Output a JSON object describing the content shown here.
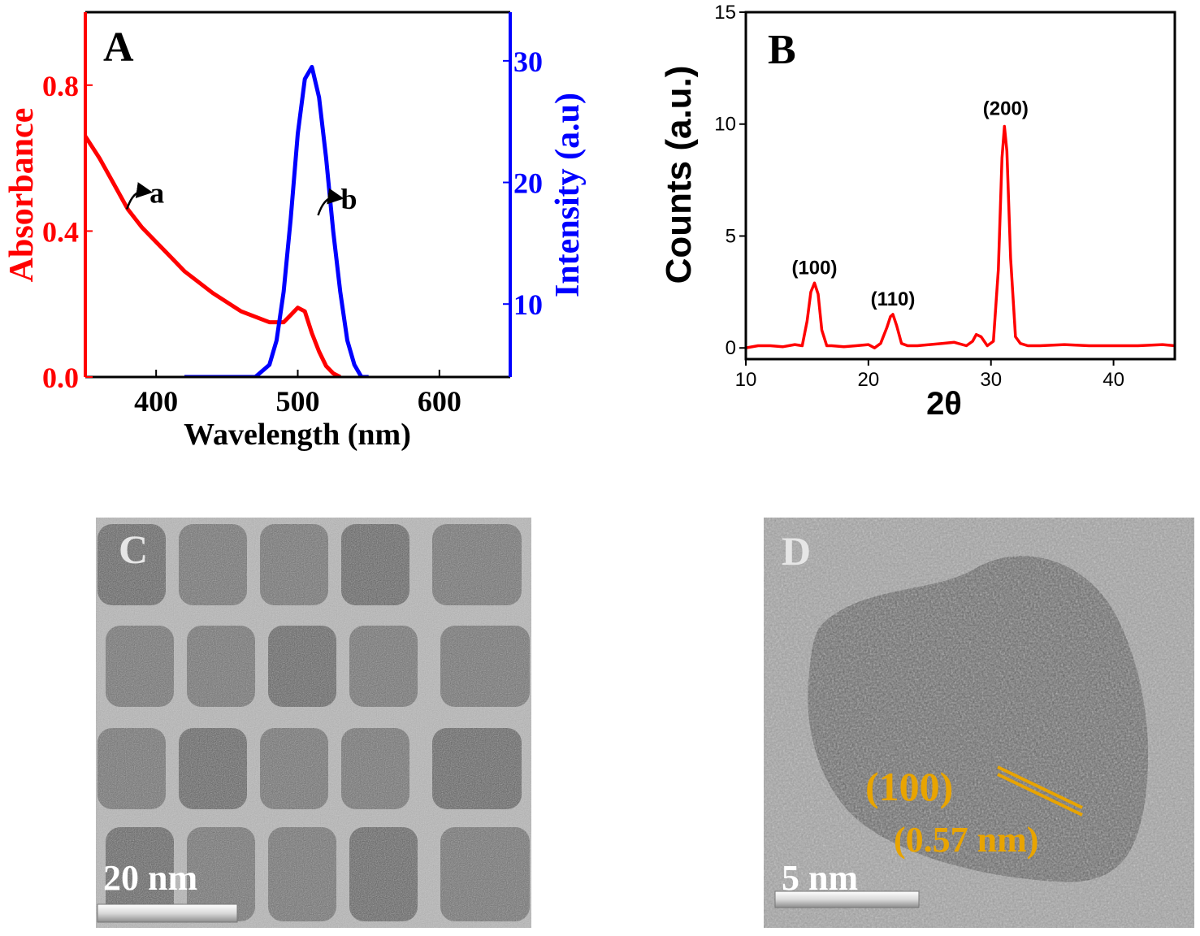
{
  "panels": {
    "A": {
      "label": "A"
    },
    "B": {
      "label": "B"
    },
    "C": {
      "label": "C",
      "scale_bar": "20 nm"
    },
    "D": {
      "label": "D",
      "scale_bar": "5 nm",
      "plane": "(100)",
      "spacing": "(0.57 nm)"
    }
  },
  "colors": {
    "absorbance": "#ff0000",
    "intensity": "#0000ff",
    "xrd": "#ff0000",
    "lattice_annotation": "#e8a400",
    "micrograph_label": "#e6e6e6"
  },
  "chart_data": [
    {
      "panel": "A",
      "type": "line",
      "title": "",
      "xlabel": "Wavelength (nm)",
      "ylabel_left": "Absorbance",
      "ylabel_right": "Intensity (a.u)",
      "xlim": [
        350,
        650
      ],
      "ylim_left": [
        0.0,
        1.0
      ],
      "ylim_right": [
        4,
        34
      ],
      "xticks": [
        400,
        500,
        600
      ],
      "yticks_left": [
        0.0,
        0.4,
        0.8
      ],
      "yticks_left_labels": [
        "0.0",
        "0.4",
        "0.8"
      ],
      "yticks_right": [
        10,
        20,
        30
      ],
      "series": [
        {
          "name": "a",
          "axis": "left",
          "x": [
            350,
            360,
            370,
            380,
            390,
            400,
            410,
            420,
            440,
            460,
            480,
            490,
            495,
            500,
            505,
            510,
            515,
            520,
            525,
            530
          ],
          "y": [
            0.66,
            0.6,
            0.53,
            0.46,
            0.41,
            0.37,
            0.33,
            0.29,
            0.23,
            0.18,
            0.15,
            0.15,
            0.17,
            0.19,
            0.18,
            0.12,
            0.07,
            0.03,
            0.01,
            0.0
          ]
        },
        {
          "name": "b",
          "axis": "right",
          "x": [
            420,
            470,
            480,
            485,
            490,
            495,
            500,
            505,
            510,
            515,
            520,
            525,
            530,
            535,
            540,
            545,
            550
          ],
          "y": [
            4,
            4,
            5,
            7,
            11,
            17,
            24,
            28.5,
            29.5,
            27,
            22,
            16,
            11,
            7,
            5,
            4,
            4
          ]
        }
      ],
      "annotations": [
        {
          "text": "a",
          "x": 400,
          "y": 0.5,
          "axis": "left"
        },
        {
          "text": "b",
          "x": 535,
          "y": 18.5,
          "axis": "right"
        }
      ]
    },
    {
      "panel": "B",
      "type": "line",
      "title": "",
      "xlabel": "2θ",
      "ylabel": "Counts (a.u.)",
      "xlim": [
        10,
        45
      ],
      "ylim": [
        -0.5,
        15
      ],
      "xticks": [
        10,
        20,
        30,
        40
      ],
      "yticks": [
        0,
        5,
        10,
        15
      ],
      "series": [
        {
          "name": "",
          "x": [
            10,
            11,
            12,
            13,
            14,
            14.6,
            15.0,
            15.3,
            15.6,
            15.9,
            16.2,
            16.6,
            17,
            18,
            19,
            20,
            20.5,
            21,
            21.5,
            21.8,
            22.0,
            22.3,
            22.7,
            23.2,
            24,
            25,
            26,
            27,
            28,
            28.5,
            28.8,
            29.2,
            29.7,
            30.2,
            30.6,
            30.9,
            31.1,
            31.3,
            31.6,
            32.0,
            32.4,
            33,
            34,
            36,
            38,
            40,
            42,
            44,
            45
          ],
          "y": [
            0,
            0.1,
            0.1,
            0.05,
            0.15,
            0.1,
            1.2,
            2.5,
            2.9,
            2.4,
            0.8,
            0.1,
            0.1,
            0.05,
            0.1,
            0.15,
            0.0,
            0.2,
            0.9,
            1.4,
            1.5,
            1.0,
            0.2,
            0.1,
            0.1,
            0.15,
            0.2,
            0.25,
            0.1,
            0.3,
            0.6,
            0.5,
            0.1,
            0.3,
            3.5,
            8.5,
            9.9,
            8.8,
            4.0,
            0.5,
            0.2,
            0.1,
            0.1,
            0.15,
            0.1,
            0.1,
            0.1,
            0.15,
            0.1
          ]
        }
      ],
      "annotations": [
        {
          "text": "(100)",
          "x": 15.6,
          "y": 3.3
        },
        {
          "text": "(110)",
          "x": 22.0,
          "y": 1.9
        },
        {
          "text": "(200)",
          "x": 31.2,
          "y": 10.4
        }
      ]
    }
  ]
}
